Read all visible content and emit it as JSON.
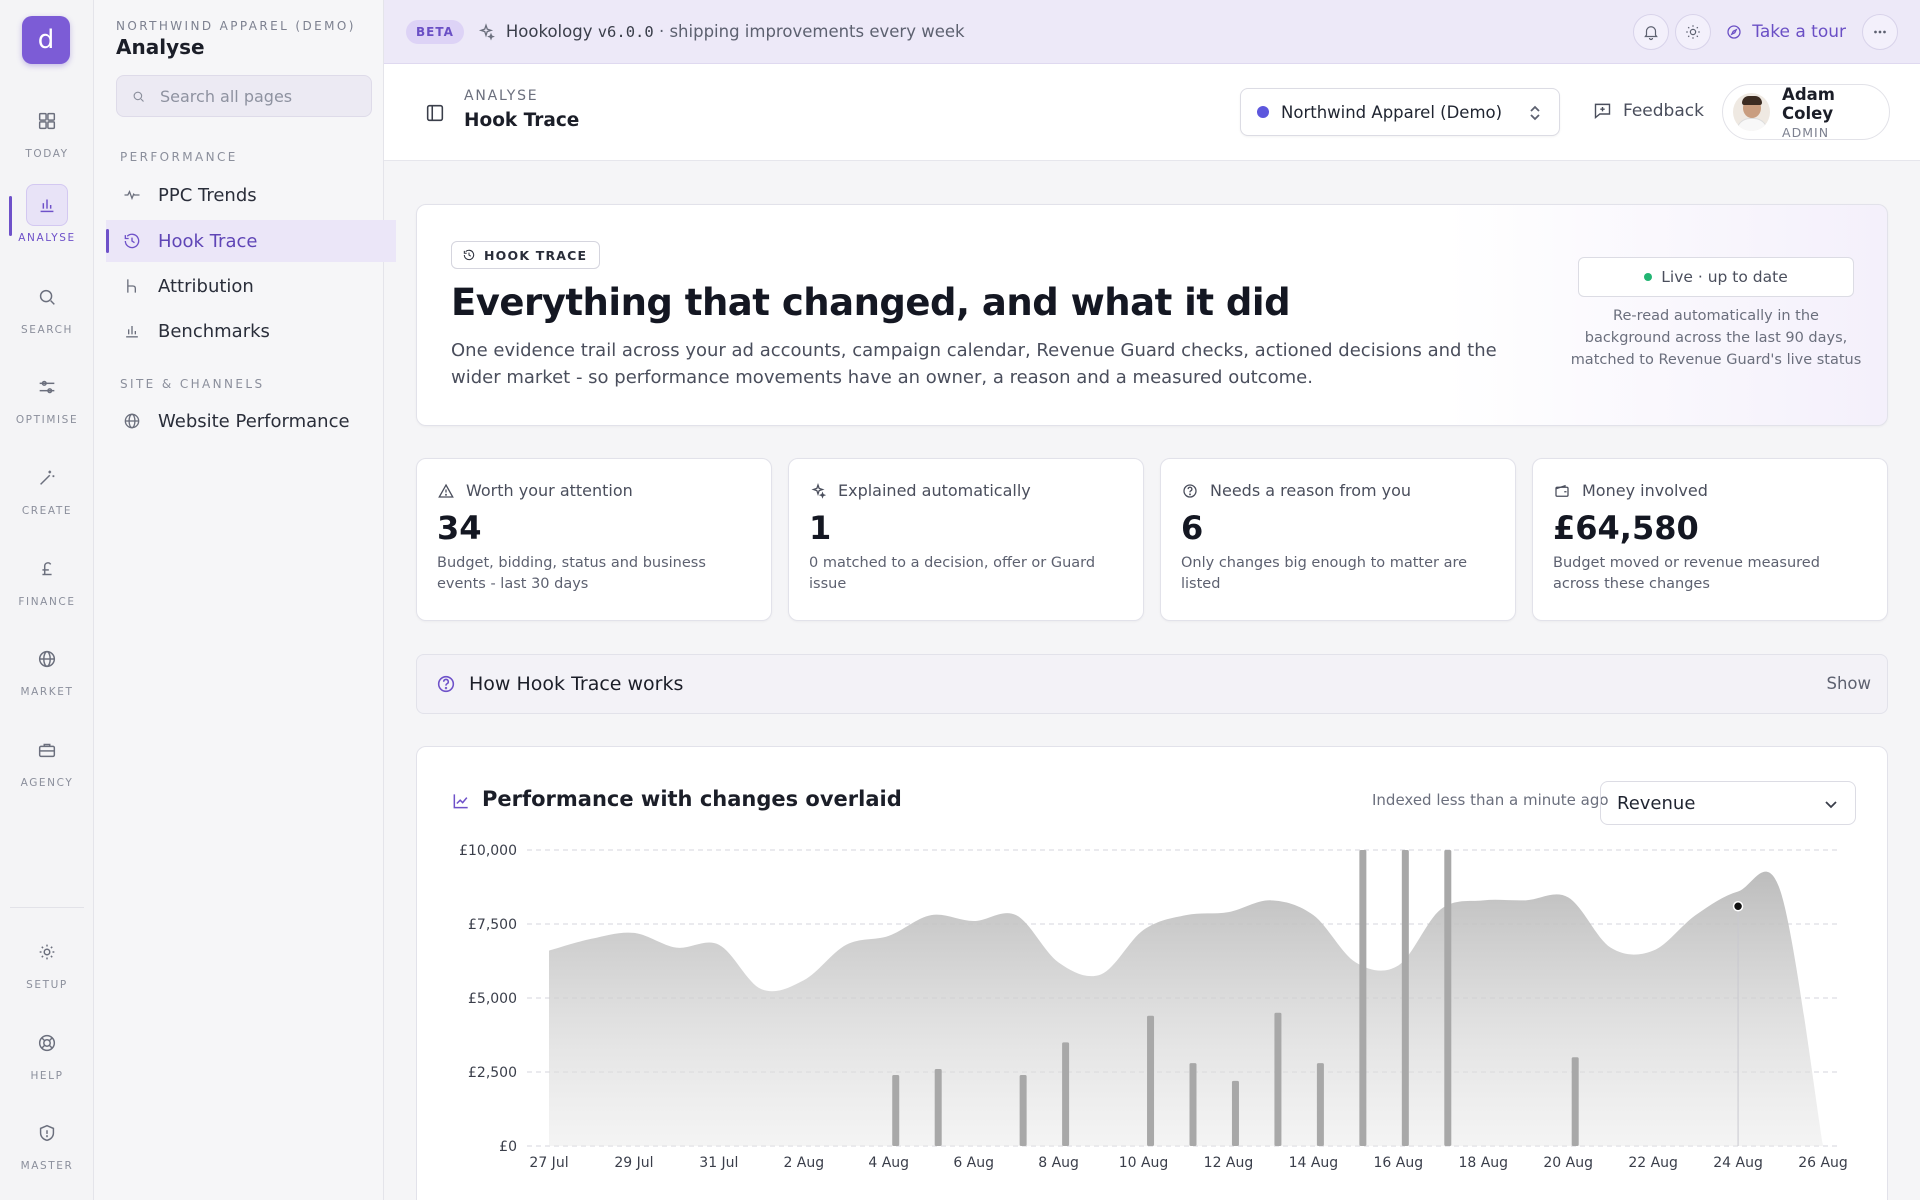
{
  "rail": {
    "logo": "d",
    "items": [
      {
        "label": "TODAY",
        "icon": "grid-icon"
      },
      {
        "label": "ANALYSE",
        "icon": "bar-chart-icon"
      },
      {
        "label": "SEARCH",
        "icon": "magnifier-icon"
      },
      {
        "label": "OPTIMISE",
        "icon": "sliders-icon"
      },
      {
        "label": "CREATE",
        "icon": "magic-wand-icon"
      },
      {
        "label": "FINANCE",
        "icon": "pound-icon"
      },
      {
        "label": "MARKET",
        "icon": "globe-icon"
      },
      {
        "label": "AGENCY",
        "icon": "briefcase-icon"
      },
      {
        "label": "SETUP",
        "icon": "sun-gear-icon"
      },
      {
        "label": "HELP",
        "icon": "lifebuoy-icon"
      },
      {
        "label": "MASTER",
        "icon": "shield-icon"
      }
    ]
  },
  "sidebar": {
    "org": "NORTHWIND APPAREL (DEMO)",
    "title": "Analyse",
    "search_placeholder": "Search all pages",
    "sections": [
      {
        "label": "PERFORMANCE",
        "items": [
          "PPC Trends",
          "Hook Trace",
          "Attribution",
          "Benchmarks"
        ]
      },
      {
        "label": "SITE & CHANNELS",
        "items": [
          "Website Performance"
        ]
      }
    ],
    "active_item": "Hook Trace"
  },
  "banner": {
    "badge": "BETA",
    "brand": "Hookology",
    "version": "v6.0.0",
    "tagline": "· shipping improvements every week",
    "tour": "Take a tour"
  },
  "header": {
    "eyebrow": "ANALYSE",
    "title": "Hook Trace",
    "org_select": "Northwind Apparel (Demo)",
    "feedback": "Feedback",
    "user": {
      "name": "Adam Coley",
      "role": "ADMIN"
    }
  },
  "hero": {
    "badge": "HOOK TRACE",
    "title": "Everything that changed, and what it did",
    "description": "One evidence trail across your ad accounts, campaign calendar, Revenue Guard checks, actioned decisions and the wider market - so performance movements have an owner, a reason and a measured outcome.",
    "live": "Live · up to date",
    "live_note": "Re-read automatically in the background across the last 90 days, matched to Revenue Guard's live status"
  },
  "stats": [
    {
      "icon": "warning-icon",
      "label": "Worth your attention",
      "value": "34",
      "sub": "Budget, bidding, status and business events - last 30 days"
    },
    {
      "icon": "sparkle-icon",
      "label": "Explained automatically",
      "value": "1",
      "sub": "0 matched to a decision, offer or Guard issue"
    },
    {
      "icon": "question-icon",
      "label": "Needs a reason from you",
      "value": "6",
      "sub": "Only changes big enough to matter are listed"
    },
    {
      "icon": "wallet-icon",
      "label": "Money involved",
      "value": "£64,580",
      "sub": "Budget moved or revenue measured across these changes"
    }
  ],
  "how": {
    "title": "How Hook Trace works",
    "toggle": "Show"
  },
  "chart": {
    "title": "Performance with changes overlaid",
    "indexed": "Indexed less than a minute ago",
    "metric": "Revenue"
  },
  "chart_data": {
    "type": "area",
    "ylim": [
      0,
      10000
    ],
    "yticks": [
      0,
      2500,
      5000,
      7500,
      10000
    ],
    "ytick_labels": [
      "£0",
      "£2,500",
      "£5,000",
      "£7,500",
      "£10,000"
    ],
    "x_labels": [
      "27 Jul",
      "29 Jul",
      "31 Jul",
      "2 Aug",
      "4 Aug",
      "6 Aug",
      "8 Aug",
      "10 Aug",
      "12 Aug",
      "14 Aug",
      "16 Aug",
      "18 Aug",
      "20 Aug",
      "22 Aug",
      "24 Aug",
      "26 Aug"
    ],
    "x_days": [
      "27 Jul",
      "28 Jul",
      "29 Jul",
      "30 Jul",
      "31 Jul",
      "1 Aug",
      "2 Aug",
      "3 Aug",
      "4 Aug",
      "5 Aug",
      "6 Aug",
      "7 Aug",
      "8 Aug",
      "9 Aug",
      "10 Aug",
      "11 Aug",
      "12 Aug",
      "13 Aug",
      "14 Aug",
      "15 Aug",
      "16 Aug",
      "17 Aug",
      "18 Aug",
      "19 Aug",
      "20 Aug",
      "21 Aug",
      "22 Aug",
      "23 Aug",
      "24 Aug",
      "25 Aug",
      "26 Aug"
    ],
    "revenue": [
      6600,
      7000,
      7200,
      6700,
      6800,
      5300,
      5600,
      6800,
      7100,
      7800,
      7600,
      7800,
      6200,
      5800,
      7300,
      7800,
      7900,
      8300,
      7800,
      6200,
      6100,
      8000,
      8300,
      8300,
      8400,
      6700,
      6600,
      7800,
      8600,
      8600,
      0
    ],
    "change_days": [
      "4 Aug",
      "5 Aug",
      "7 Aug",
      "8 Aug",
      "10 Aug",
      "11 Aug",
      "12 Aug",
      "13 Aug",
      "14 Aug",
      "15 Aug",
      "16 Aug",
      "17 Aug",
      "20 Aug"
    ],
    "change_heights": [
      2400,
      2600,
      2400,
      3500,
      4400,
      2800,
      2200,
      4500,
      2800,
      10000,
      10000,
      10000,
      3000
    ],
    "marker": {
      "day": "24 Aug",
      "value": 8100
    },
    "grid": true,
    "colors": {
      "area": "#bdbdbd",
      "bars": "#a8a8a8",
      "grid": "#d6d6dc"
    }
  }
}
